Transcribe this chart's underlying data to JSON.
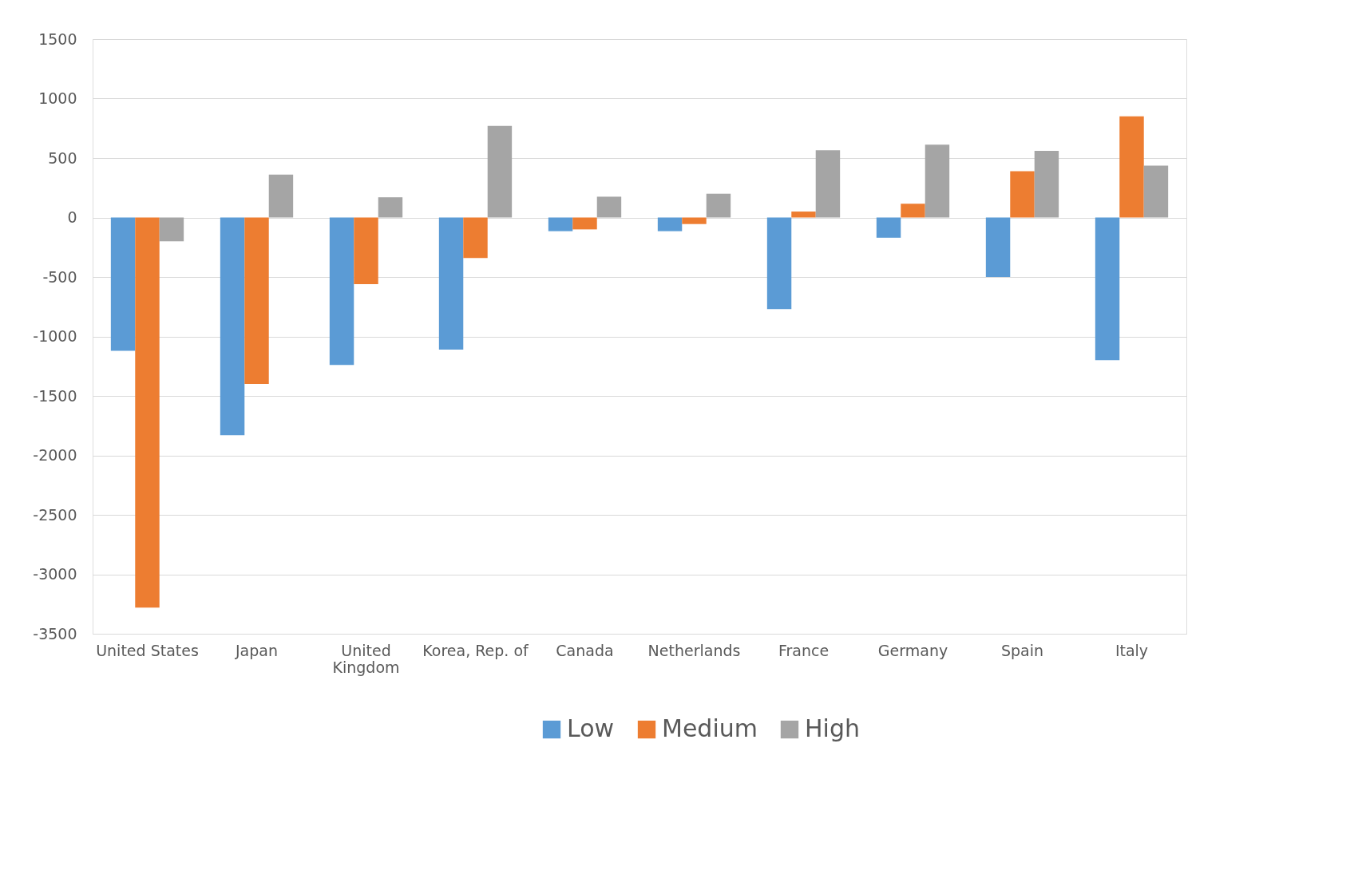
{
  "chart_data": {
    "type": "bar",
    "categories": [
      "United States",
      "Japan",
      "United\nKingdom",
      "Korea, Rep. of",
      "Canada",
      "Netherlands",
      "France",
      "Germany",
      "Spain",
      "Italy"
    ],
    "series": [
      {
        "name": "Low",
        "color": "#5b9bd5",
        "values": [
          -1120,
          -1830,
          -1240,
          -1110,
          -115,
          -115,
          -770,
          -170,
          -500,
          -1200
        ]
      },
      {
        "name": "Medium",
        "color": "#ed7d31",
        "values": [
          -3280,
          -1400,
          -560,
          -340,
          -100,
          -55,
          50,
          115,
          390,
          850
        ]
      },
      {
        "name": "High",
        "color": "#a5a5a5",
        "values": [
          -200,
          360,
          170,
          770,
          175,
          200,
          565,
          612,
          560,
          437
        ]
      }
    ],
    "ylim": [
      -3500,
      1500
    ],
    "yticks": [
      -3500,
      -3000,
      -2500,
      -2000,
      -1500,
      -1000,
      -500,
      0,
      500,
      1000,
      1500
    ],
    "grid": "y",
    "legend": "bottom"
  }
}
